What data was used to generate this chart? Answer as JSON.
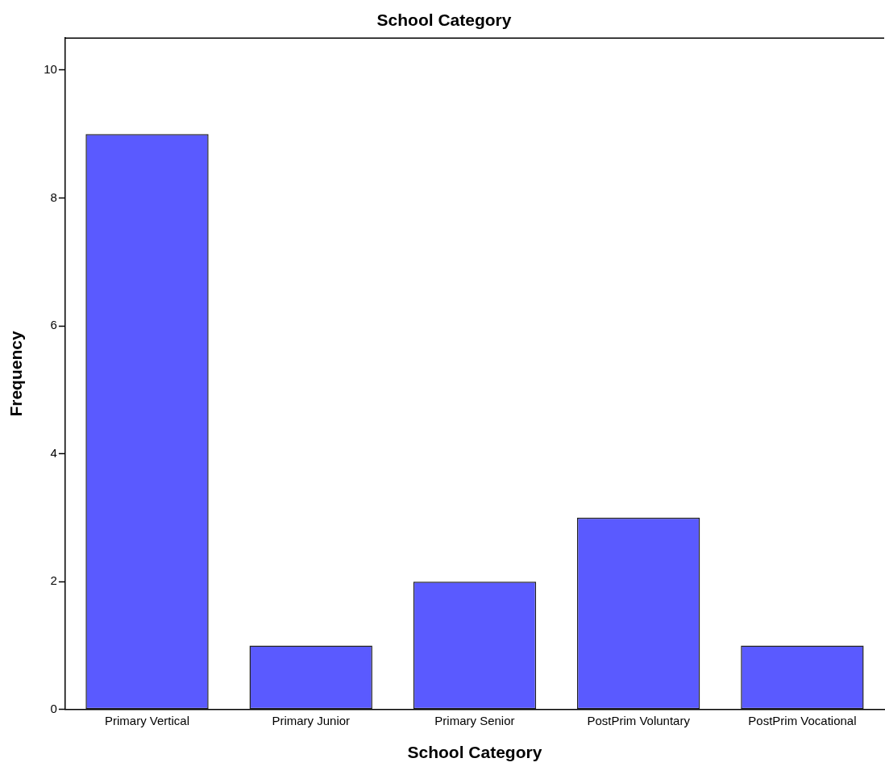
{
  "chart_data": {
    "type": "bar",
    "title": "School Category",
    "xlabel": "School Category",
    "ylabel": "Frequency",
    "categories": [
      "Primary Vertical",
      "Primary Junior",
      "Primary Senior",
      "PostPrim Voluntary",
      "PostPrim Vocational"
    ],
    "values": [
      9,
      1,
      2,
      3,
      1
    ],
    "color": "#5a5aff",
    "ylim": [
      0,
      10.5
    ],
    "yticks": [
      0,
      2,
      4,
      6,
      8,
      10
    ]
  }
}
